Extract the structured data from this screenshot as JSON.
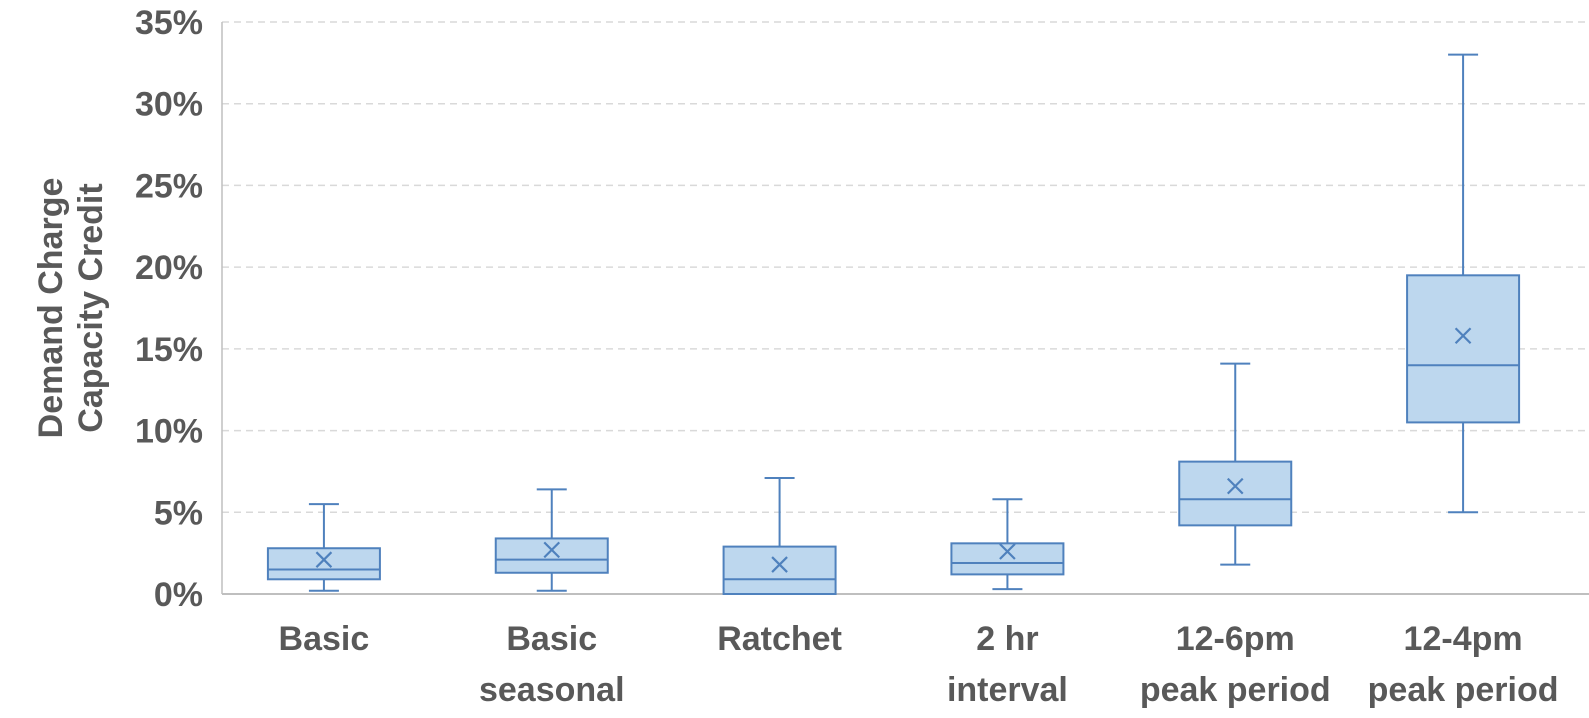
{
  "chart_data": {
    "type": "box",
    "ylabel": [
      "Demand Charge",
      "Capacity  Credit"
    ],
    "yticks": [
      "0%",
      "5%",
      "10%",
      "15%",
      "20%",
      "25%",
      "30%",
      "35%"
    ],
    "ylim": [
      0,
      35
    ],
    "grid": true,
    "categories": [
      [
        "Basic"
      ],
      [
        "Basic",
        "seasonal"
      ],
      [
        "Ratchet"
      ],
      [
        "2 hr",
        "interval"
      ],
      [
        "12-6pm",
        "peak period"
      ],
      [
        "12-4pm",
        "peak period"
      ]
    ],
    "series": [
      {
        "min": 0.2,
        "q1": 0.9,
        "median": 1.5,
        "q3": 2.8,
        "max": 5.5,
        "mean": 2.1
      },
      {
        "min": 0.2,
        "q1": 1.3,
        "median": 2.1,
        "q3": 3.4,
        "max": 6.4,
        "mean": 2.7
      },
      {
        "min": 0.0,
        "q1": 0.0,
        "median": 0.9,
        "q3": 2.9,
        "max": 7.1,
        "mean": 1.8
      },
      {
        "min": 0.3,
        "q1": 1.2,
        "median": 1.9,
        "q3": 3.1,
        "max": 5.8,
        "mean": 2.6
      },
      {
        "min": 1.8,
        "q1": 4.2,
        "median": 5.8,
        "q3": 8.1,
        "max": 14.1,
        "mean": 6.6
      },
      {
        "min": 5.0,
        "q1": 10.5,
        "median": 14.0,
        "q3": 19.5,
        "max": 33.0,
        "mean": 15.8
      }
    ],
    "colors": {
      "box_fill": "#bdd7ee",
      "box_stroke": "#4f81bd",
      "grid": "#d9d9d9",
      "axis": "#bfbfbf",
      "text": "#595959"
    }
  }
}
